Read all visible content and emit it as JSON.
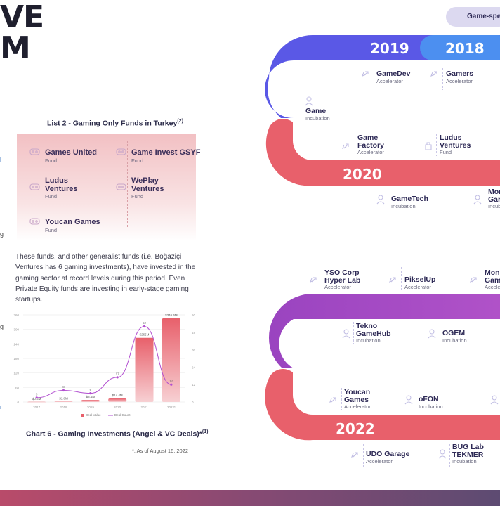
{
  "title": {
    "line1": "VE",
    "line2": "M"
  },
  "side_marks": [
    "l",
    "g",
    "g",
    "r"
  ],
  "list2": {
    "caption": "List 2 - Gaming Only Funds in Turkey",
    "caption_sup": "(2)",
    "funds": [
      {
        "name": "Games United",
        "type": "Fund"
      },
      {
        "name": "Game Invest GSYF",
        "type": "Fund"
      },
      {
        "name": "Ludus\nVentures",
        "type": "Fund"
      },
      {
        "name": "WePlay\nVentures",
        "type": "Fund"
      },
      {
        "name": "Youcan Games",
        "type": "Fund"
      }
    ]
  },
  "paragraph": "These funds, and other generalist funds (i.e. Boğaziçi Ventures has 6 gaming investments), have invested in the gaming sector at record levels during this period. Even Private Equity funds are investing in early-stage gaming startups.",
  "chart_data": {
    "type": "bar",
    "title": "Chart 6 - Gaming Investments (Angel & VC Deals)*",
    "title_sup": "(1)",
    "categories": [
      "2017",
      "2018",
      "2019",
      "2020",
      "2021",
      "2022*"
    ],
    "series": [
      {
        "name": "Deal Value",
        "axis": "left",
        "values": [
          0.6,
          1.8,
          8.4,
          14.4,
          265,
          346
        ],
        "labels": [
          "$0.6M",
          "$1.8M",
          "$8.4M",
          "$14.4M",
          "$265M",
          "$346.5M"
        ],
        "color": "#e8606b"
      },
      {
        "name": "Deal Count",
        "axis": "right",
        "type": "line",
        "values": [
          3,
          8,
          6,
          17,
          52,
          12
        ],
        "color": "#b24fd0"
      }
    ],
    "yleft": {
      "ticks": [
        "0",
        "60",
        "120",
        "180",
        "240",
        "300",
        "360"
      ],
      "max": 360
    },
    "yright": {
      "ticks": [
        "0",
        "12",
        "24",
        "36",
        "48",
        "60"
      ],
      "max": 60
    },
    "legend": [
      "Deal Value",
      "Deal Count"
    ],
    "grid": true
  },
  "footnote": "*: As of August 16, 2022",
  "tag": "Game-spec",
  "timeline": {
    "years": [
      "2019",
      "2018",
      "2020",
      "2022"
    ],
    "items": [
      {
        "name": "GameDev",
        "type": "Accelerator"
      },
      {
        "name": "Gamers",
        "type": "Accelerator"
      },
      {
        "name": "Game",
        "type": "Incubation"
      },
      {
        "name": "Game\nFactory",
        "type": "Accelerator"
      },
      {
        "name": "Ludus\nVentures",
        "type": "Fund"
      },
      {
        "name": "GameTech",
        "type": "Incubation"
      },
      {
        "name": "Mon\nGar",
        "type": "Incub"
      },
      {
        "name": "YSO Corp\nHyper Lab",
        "type": "Accelerator"
      },
      {
        "name": "PikselUp",
        "type": "Accelerator"
      },
      {
        "name": "Mon\nGam",
        "type": "Accele"
      },
      {
        "name": "Tekno\nGameHub",
        "type": "Incubation"
      },
      {
        "name": "OGEM",
        "type": "Incubation"
      },
      {
        "name": "Youcan\nGames",
        "type": "Accelerator"
      },
      {
        "name": "oFON",
        "type": "Incubation"
      },
      {
        "name": "UDO Garage",
        "type": "Accelerator"
      },
      {
        "name": "BUG Lab\nTEKMER",
        "type": "Incubation"
      }
    ]
  }
}
